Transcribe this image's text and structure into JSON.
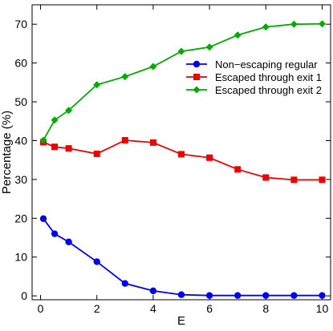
{
  "chart_data": {
    "type": "line",
    "title": "",
    "xlabel": "E",
    "ylabel": "Percentage (%)",
    "xlim": [
      -0.3,
      10.3
    ],
    "ylim": [
      -1,
      75
    ],
    "x_ticks": [
      0,
      2,
      4,
      6,
      8,
      10
    ],
    "y_ticks": [
      0,
      10,
      20,
      30,
      40,
      50,
      60,
      70
    ],
    "grid": false,
    "legend_position": "upper-right",
    "x": [
      0.1,
      0.5,
      1,
      2,
      3,
      4,
      5,
      6,
      7,
      8,
      9,
      10
    ],
    "series": [
      {
        "name": "Non−escaping regular",
        "marker": "circle",
        "color": "#0000ee",
        "values": [
          19.9,
          16.0,
          13.9,
          8.8,
          3.2,
          1.3,
          0.3,
          0.1,
          0.1,
          0.1,
          0.1,
          0.1
        ]
      },
      {
        "name": "Escaped through exit 1",
        "marker": "square",
        "color": "#ee0000",
        "values": [
          39.6,
          38.4,
          38.0,
          36.6,
          40.1,
          39.5,
          36.5,
          35.6,
          32.6,
          30.5,
          29.9,
          29.9
        ]
      },
      {
        "name": "Escaped through exit 2",
        "marker": "diamond",
        "color": "#00aa00",
        "values": [
          40.1,
          45.3,
          47.8,
          54.4,
          56.5,
          59.1,
          63.0,
          64.1,
          67.2,
          69.3,
          70.0,
          70.1
        ]
      }
    ]
  }
}
